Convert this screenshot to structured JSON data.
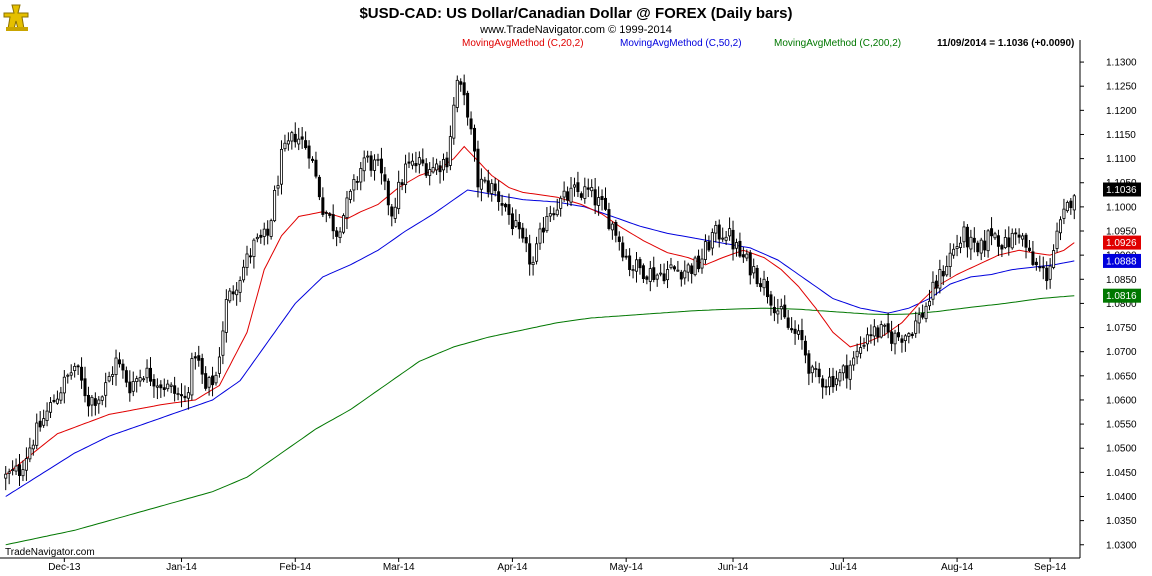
{
  "chart_data": {
    "type": "candlestick",
    "title": "$USD-CAD:  US Dollar/Canadian Dollar @ FOREX  (Daily bars)",
    "subtitle": "www.TradeNavigator.com © 1999-2014",
    "watermark": "TradeNavigator.com",
    "status_text": "11/09/2014 = 1.1036 (+0.0090)",
    "x_labels": [
      "Dec-13",
      "Jan-14",
      "Feb-14",
      "Mar-14",
      "Apr-14",
      "May-14",
      "Jun-14",
      "Jul-14",
      "Aug-14",
      "Sep-14"
    ],
    "y_labels": [
      "1.1300",
      "1.1250",
      "1.1200",
      "1.1150",
      "1.1100",
      "1.1050",
      "1.1000",
      "1.0950",
      "1.0900",
      "1.0850",
      "1.0800",
      "1.0750",
      "1.0700",
      "1.0650",
      "1.0600",
      "1.0550",
      "1.0500",
      "1.0450",
      "1.0400",
      "1.0350",
      "1.0300"
    ],
    "ylim": [
      1.0285,
      1.1325
    ],
    "grid": false,
    "legend_placement": "top",
    "series": [
      {
        "name": "MovingAvgMethod (C,20,2)",
        "color": "#e00000",
        "badge": "1.0926"
      },
      {
        "name": "MovingAvgMethod (C,50,2)",
        "color": "#0000dd",
        "badge": "1.0888"
      },
      {
        "name": "MovingAvgMethod (C,200,2)",
        "color": "#007700",
        "badge": "1.0816"
      }
    ],
    "last_price": {
      "value": "1.1036",
      "color": "#000000"
    },
    "ma20_curve": [
      [
        0,
        1.0445
      ],
      [
        15,
        1.053
      ],
      [
        30,
        1.057
      ],
      [
        45,
        1.059
      ],
      [
        55,
        1.06
      ],
      [
        62,
        1.063
      ],
      [
        70,
        1.074
      ],
      [
        75,
        1.087
      ],
      [
        80,
        1.094
      ],
      [
        85,
        1.098
      ],
      [
        92,
        1.099
      ],
      [
        99,
        1.0975
      ],
      [
        103,
        1.099
      ],
      [
        108,
        1.1005
      ],
      [
        114,
        1.104
      ],
      [
        120,
        1.1065
      ],
      [
        126,
        1.108
      ],
      [
        130,
        1.11
      ],
      [
        133,
        1.1125
      ],
      [
        137,
        1.1095
      ],
      [
        141,
        1.1065
      ],
      [
        146,
        1.104
      ],
      [
        150,
        1.103
      ],
      [
        155,
        1.1025
      ],
      [
        160,
        1.102
      ],
      [
        167,
        1.1005
      ],
      [
        173,
        1.0985
      ],
      [
        178,
        1.096
      ],
      [
        185,
        1.093
      ],
      [
        192,
        1.0905
      ],
      [
        198,
        1.0895
      ],
      [
        203,
        1.088
      ],
      [
        208,
        1.0895
      ],
      [
        214,
        1.091
      ],
      [
        220,
        1.0895
      ],
      [
        225,
        1.087
      ],
      [
        230,
        1.0835
      ],
      [
        235,
        1.079
      ],
      [
        240,
        1.074
      ],
      [
        245,
        1.071
      ],
      [
        250,
        1.072
      ],
      [
        255,
        1.0735
      ],
      [
        260,
        1.076
      ],
      [
        265,
        1.08
      ],
      [
        270,
        1.0835
      ],
      [
        276,
        1.086
      ],
      [
        282,
        1.088
      ],
      [
        288,
        1.09
      ],
      [
        294,
        1.091
      ],
      [
        298,
        1.0905
      ],
      [
        303,
        1.09
      ],
      [
        307,
        1.091
      ],
      [
        310,
        1.0926
      ]
    ],
    "ma50_curve": [
      [
        0,
        1.04
      ],
      [
        10,
        1.0445
      ],
      [
        20,
        1.049
      ],
      [
        30,
        1.0525
      ],
      [
        40,
        1.055
      ],
      [
        50,
        1.0575
      ],
      [
        60,
        1.06
      ],
      [
        68,
        1.064
      ],
      [
        76,
        1.072
      ],
      [
        84,
        1.08
      ],
      [
        92,
        1.0855
      ],
      [
        100,
        1.088
      ],
      [
        108,
        1.091
      ],
      [
        116,
        1.095
      ],
      [
        124,
        1.0985
      ],
      [
        130,
        1.1015
      ],
      [
        134,
        1.1035
      ],
      [
        142,
        1.1025
      ],
      [
        150,
        1.1015
      ],
      [
        160,
        1.101
      ],
      [
        168,
        1.1
      ],
      [
        176,
        1.098
      ],
      [
        184,
        1.096
      ],
      [
        192,
        1.0945
      ],
      [
        200,
        1.0935
      ],
      [
        208,
        1.0925
      ],
      [
        216,
        1.0915
      ],
      [
        224,
        1.089
      ],
      [
        232,
        1.085
      ],
      [
        240,
        1.081
      ],
      [
        248,
        1.079
      ],
      [
        256,
        1.078
      ],
      [
        262,
        1.079
      ],
      [
        268,
        1.081
      ],
      [
        274,
        1.084
      ],
      [
        280,
        1.0855
      ],
      [
        286,
        1.086
      ],
      [
        292,
        1.087
      ],
      [
        298,
        1.0875
      ],
      [
        304,
        1.088
      ],
      [
        310,
        1.0888
      ]
    ],
    "ma200_curve": [
      [
        0,
        1.03
      ],
      [
        20,
        1.033
      ],
      [
        40,
        1.037
      ],
      [
        60,
        1.041
      ],
      [
        70,
        1.044
      ],
      [
        80,
        1.049
      ],
      [
        90,
        1.054
      ],
      [
        100,
        1.058
      ],
      [
        110,
        1.063
      ],
      [
        120,
        1.068
      ],
      [
        130,
        1.071
      ],
      [
        140,
        1.073
      ],
      [
        150,
        1.0745
      ],
      [
        160,
        1.076
      ],
      [
        170,
        1.077
      ],
      [
        180,
        1.0775
      ],
      [
        190,
        1.078
      ],
      [
        200,
        1.0785
      ],
      [
        210,
        1.0788
      ],
      [
        220,
        1.079
      ],
      [
        230,
        1.0788
      ],
      [
        240,
        1.0783
      ],
      [
        250,
        1.0778
      ],
      [
        256,
        1.0777
      ],
      [
        262,
        1.0778
      ],
      [
        270,
        1.0783
      ],
      [
        280,
        1.0792
      ],
      [
        290,
        1.08
      ],
      [
        300,
        1.081
      ],
      [
        310,
        1.0816
      ]
    ],
    "close_anchors": [
      [
        0,
        1.044
      ],
      [
        4,
        1.0455
      ],
      [
        8,
        1.052
      ],
      [
        14,
        1.06
      ],
      [
        20,
        1.067
      ],
      [
        24,
        1.06
      ],
      [
        28,
        1.061
      ],
      [
        32,
        1.068
      ],
      [
        36,
        1.063
      ],
      [
        40,
        1.066
      ],
      [
        44,
        1.064
      ],
      [
        48,
        1.062
      ],
      [
        52,
        1.06
      ],
      [
        55,
        1.07
      ],
      [
        58,
        1.062
      ],
      [
        61,
        1.065
      ],
      [
        64,
        1.08
      ],
      [
        68,
        1.086
      ],
      [
        72,
        1.092
      ],
      [
        76,
        1.094
      ],
      [
        80,
        1.11
      ],
      [
        84,
        1.115
      ],
      [
        88,
        1.112
      ],
      [
        92,
        1.1
      ],
      [
        96,
        1.095
      ],
      [
        100,
        1.102
      ],
      [
        104,
        1.11
      ],
      [
        108,
        1.108
      ],
      [
        112,
        1.099
      ],
      [
        116,
        1.108
      ],
      [
        120,
        1.109
      ],
      [
        124,
        1.108
      ],
      [
        128,
        1.11
      ],
      [
        131,
        1.126
      ],
      [
        134,
        1.12
      ],
      [
        137,
        1.105
      ],
      [
        141,
        1.104
      ],
      [
        145,
        1.1
      ],
      [
        150,
        1.092
      ],
      [
        153,
        1.088
      ],
      [
        157,
        1.099
      ],
      [
        161,
        1.101
      ],
      [
        165,
        1.103
      ],
      [
        169,
        1.103
      ],
      [
        173,
        1.1
      ],
      [
        177,
        1.095
      ],
      [
        181,
        1.088
      ],
      [
        185,
        1.087
      ],
      [
        189,
        1.086
      ],
      [
        193,
        1.087
      ],
      [
        197,
        1.087
      ],
      [
        201,
        1.088
      ],
      [
        205,
        1.094
      ],
      [
        209,
        1.095
      ],
      [
        213,
        1.09
      ],
      [
        217,
        1.087
      ],
      [
        220,
        1.084
      ],
      [
        223,
        1.08
      ],
      [
        227,
        1.075
      ],
      [
        231,
        1.072
      ],
      [
        234,
        1.065
      ],
      [
        238,
        1.064
      ],
      [
        242,
        1.065
      ],
      [
        246,
        1.068
      ],
      [
        250,
        1.074
      ],
      [
        254,
        1.074
      ],
      [
        258,
        1.073
      ],
      [
        262,
        1.074
      ],
      [
        266,
        1.078
      ],
      [
        270,
        1.084
      ],
      [
        274,
        1.09
      ],
      [
        278,
        1.094
      ],
      [
        282,
        1.09
      ],
      [
        286,
        1.095
      ],
      [
        290,
        1.092
      ],
      [
        294,
        1.095
      ],
      [
        298,
        1.088
      ],
      [
        302,
        1.086
      ],
      [
        306,
        1.096
      ],
      [
        310,
        1.1036
      ]
    ]
  }
}
